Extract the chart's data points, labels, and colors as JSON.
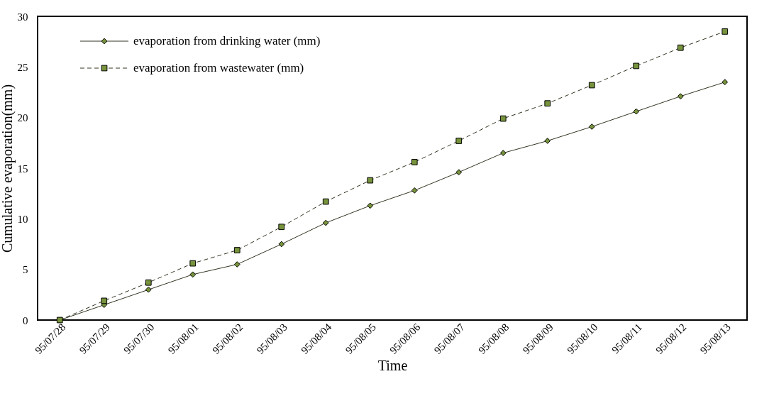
{
  "chart_data": {
    "type": "line",
    "xlabel": "Time",
    "ylabel": "Cumulative evaporation(mm)",
    "categories": [
      "95/07/28",
      "95/07/29",
      "95/07/30",
      "95/08/01",
      "95/08/02",
      "95/08/03",
      "95/08/04",
      "95/08/05",
      "95/08/06",
      "95/08/07",
      "95/08/08",
      "95/08/09",
      "95/08/10",
      "95/08/11",
      "95/08/12",
      "95/08/13"
    ],
    "series": [
      {
        "name": "evaporation from drinking water (mm)",
        "color": "#77933c",
        "marker": "diamond",
        "line_style": "solid",
        "values": [
          0,
          1.5,
          3.0,
          4.5,
          5.5,
          7.5,
          9.6,
          11.3,
          12.8,
          14.6,
          16.5,
          17.7,
          19.1,
          20.6,
          22.1,
          23.5
        ]
      },
      {
        "name": "evaporation from wastewater (mm)",
        "color": "#77933c",
        "marker": "square",
        "line_style": "dashed",
        "values": [
          0,
          1.9,
          3.7,
          5.6,
          6.9,
          9.2,
          11.7,
          13.8,
          15.6,
          17.7,
          19.9,
          21.4,
          23.2,
          25.1,
          26.9,
          28.5
        ]
      }
    ],
    "ylim": [
      0,
      30
    ],
    "yticks": [
      0,
      5,
      10,
      15,
      20,
      25,
      30
    ],
    "grid": false,
    "legend": "top left"
  }
}
